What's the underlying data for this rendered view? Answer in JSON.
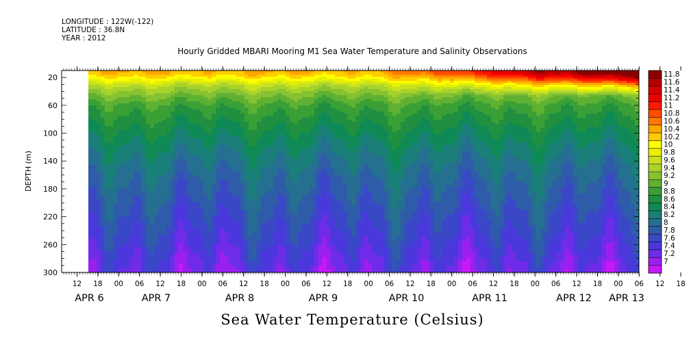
{
  "header": {
    "longitude": "LONGITUDE : 122W(-122)",
    "latitude": "LATITUDE : 36.8N",
    "year": "YEAR : 2012"
  },
  "chart_data": {
    "type": "heatmap",
    "title": "Hourly Gridded MBARI Mooring M1 Sea Water Temperature and Salinity Observations",
    "xlabel": "Sea Water Temperature (Celsius)",
    "ylabel": "DEPTH (m)",
    "x_ticks_hours": [
      "12",
      "18",
      "00",
      "06",
      "12",
      "18",
      "00",
      "06",
      "12",
      "18",
      "00",
      "06",
      "12",
      "18",
      "00",
      "06",
      "12",
      "18",
      "00",
      "06",
      "12",
      "18",
      "00",
      "06",
      "12",
      "18",
      "00",
      "06",
      "12",
      "18",
      "00"
    ],
    "x_date_labels": [
      "APR  6",
      "APR  7",
      "APR  8",
      "APR  9",
      "APR 10",
      "APR 11",
      "APR 12",
      "APR 13"
    ],
    "y_ticks": [
      "20",
      "60",
      "100",
      "140",
      "180",
      "220",
      "260",
      "300"
    ],
    "ylim": [
      300,
      10
    ],
    "colorbar_levels": [
      "11.8",
      "11.6",
      "11.4",
      "11.2",
      "11",
      "10.8",
      "10.6",
      "10.4",
      "10.2",
      "10",
      "9.8",
      "9.6",
      "9.4",
      "9.2",
      "9",
      "8.8",
      "8.6",
      "8.4",
      "8.2",
      "8",
      "7.8",
      "7.6",
      "7.4",
      "7.2",
      "7"
    ],
    "colorbar_colors": [
      "#8b0000",
      "#b80000",
      "#d60000",
      "#ee0000",
      "#ff1a00",
      "#ff4a00",
      "#ff7800",
      "#ffa500",
      "#ffcc00",
      "#ffff00",
      "#e6f000",
      "#c8e21e",
      "#a8d22c",
      "#86c232",
      "#5fb132",
      "#3aa036",
      "#209040",
      "#0f8a56",
      "#1a7f78",
      "#257090",
      "#2f5ca8",
      "#3a48c8",
      "#4b38dc",
      "#6e2ce8",
      "#9b20f0",
      "#c818f8"
    ],
    "depth_profile": [
      {
        "depth": 12,
        "temp": 10.4
      },
      {
        "depth": 20,
        "temp": 10.1
      },
      {
        "depth": 30,
        "temp": 9.6
      },
      {
        "depth": 45,
        "temp": 9.2
      },
      {
        "depth": 60,
        "temp": 8.9
      },
      {
        "depth": 80,
        "temp": 8.7
      },
      {
        "depth": 100,
        "temp": 8.5
      },
      {
        "depth": 130,
        "temp": 8.25
      },
      {
        "depth": 160,
        "temp": 8.05
      },
      {
        "depth": 190,
        "temp": 7.9
      },
      {
        "depth": 220,
        "temp": 7.75
      },
      {
        "depth": 250,
        "temp": 7.6
      },
      {
        "depth": 275,
        "temp": 7.45
      },
      {
        "depth": 300,
        "temp": 7.3
      }
    ]
  }
}
